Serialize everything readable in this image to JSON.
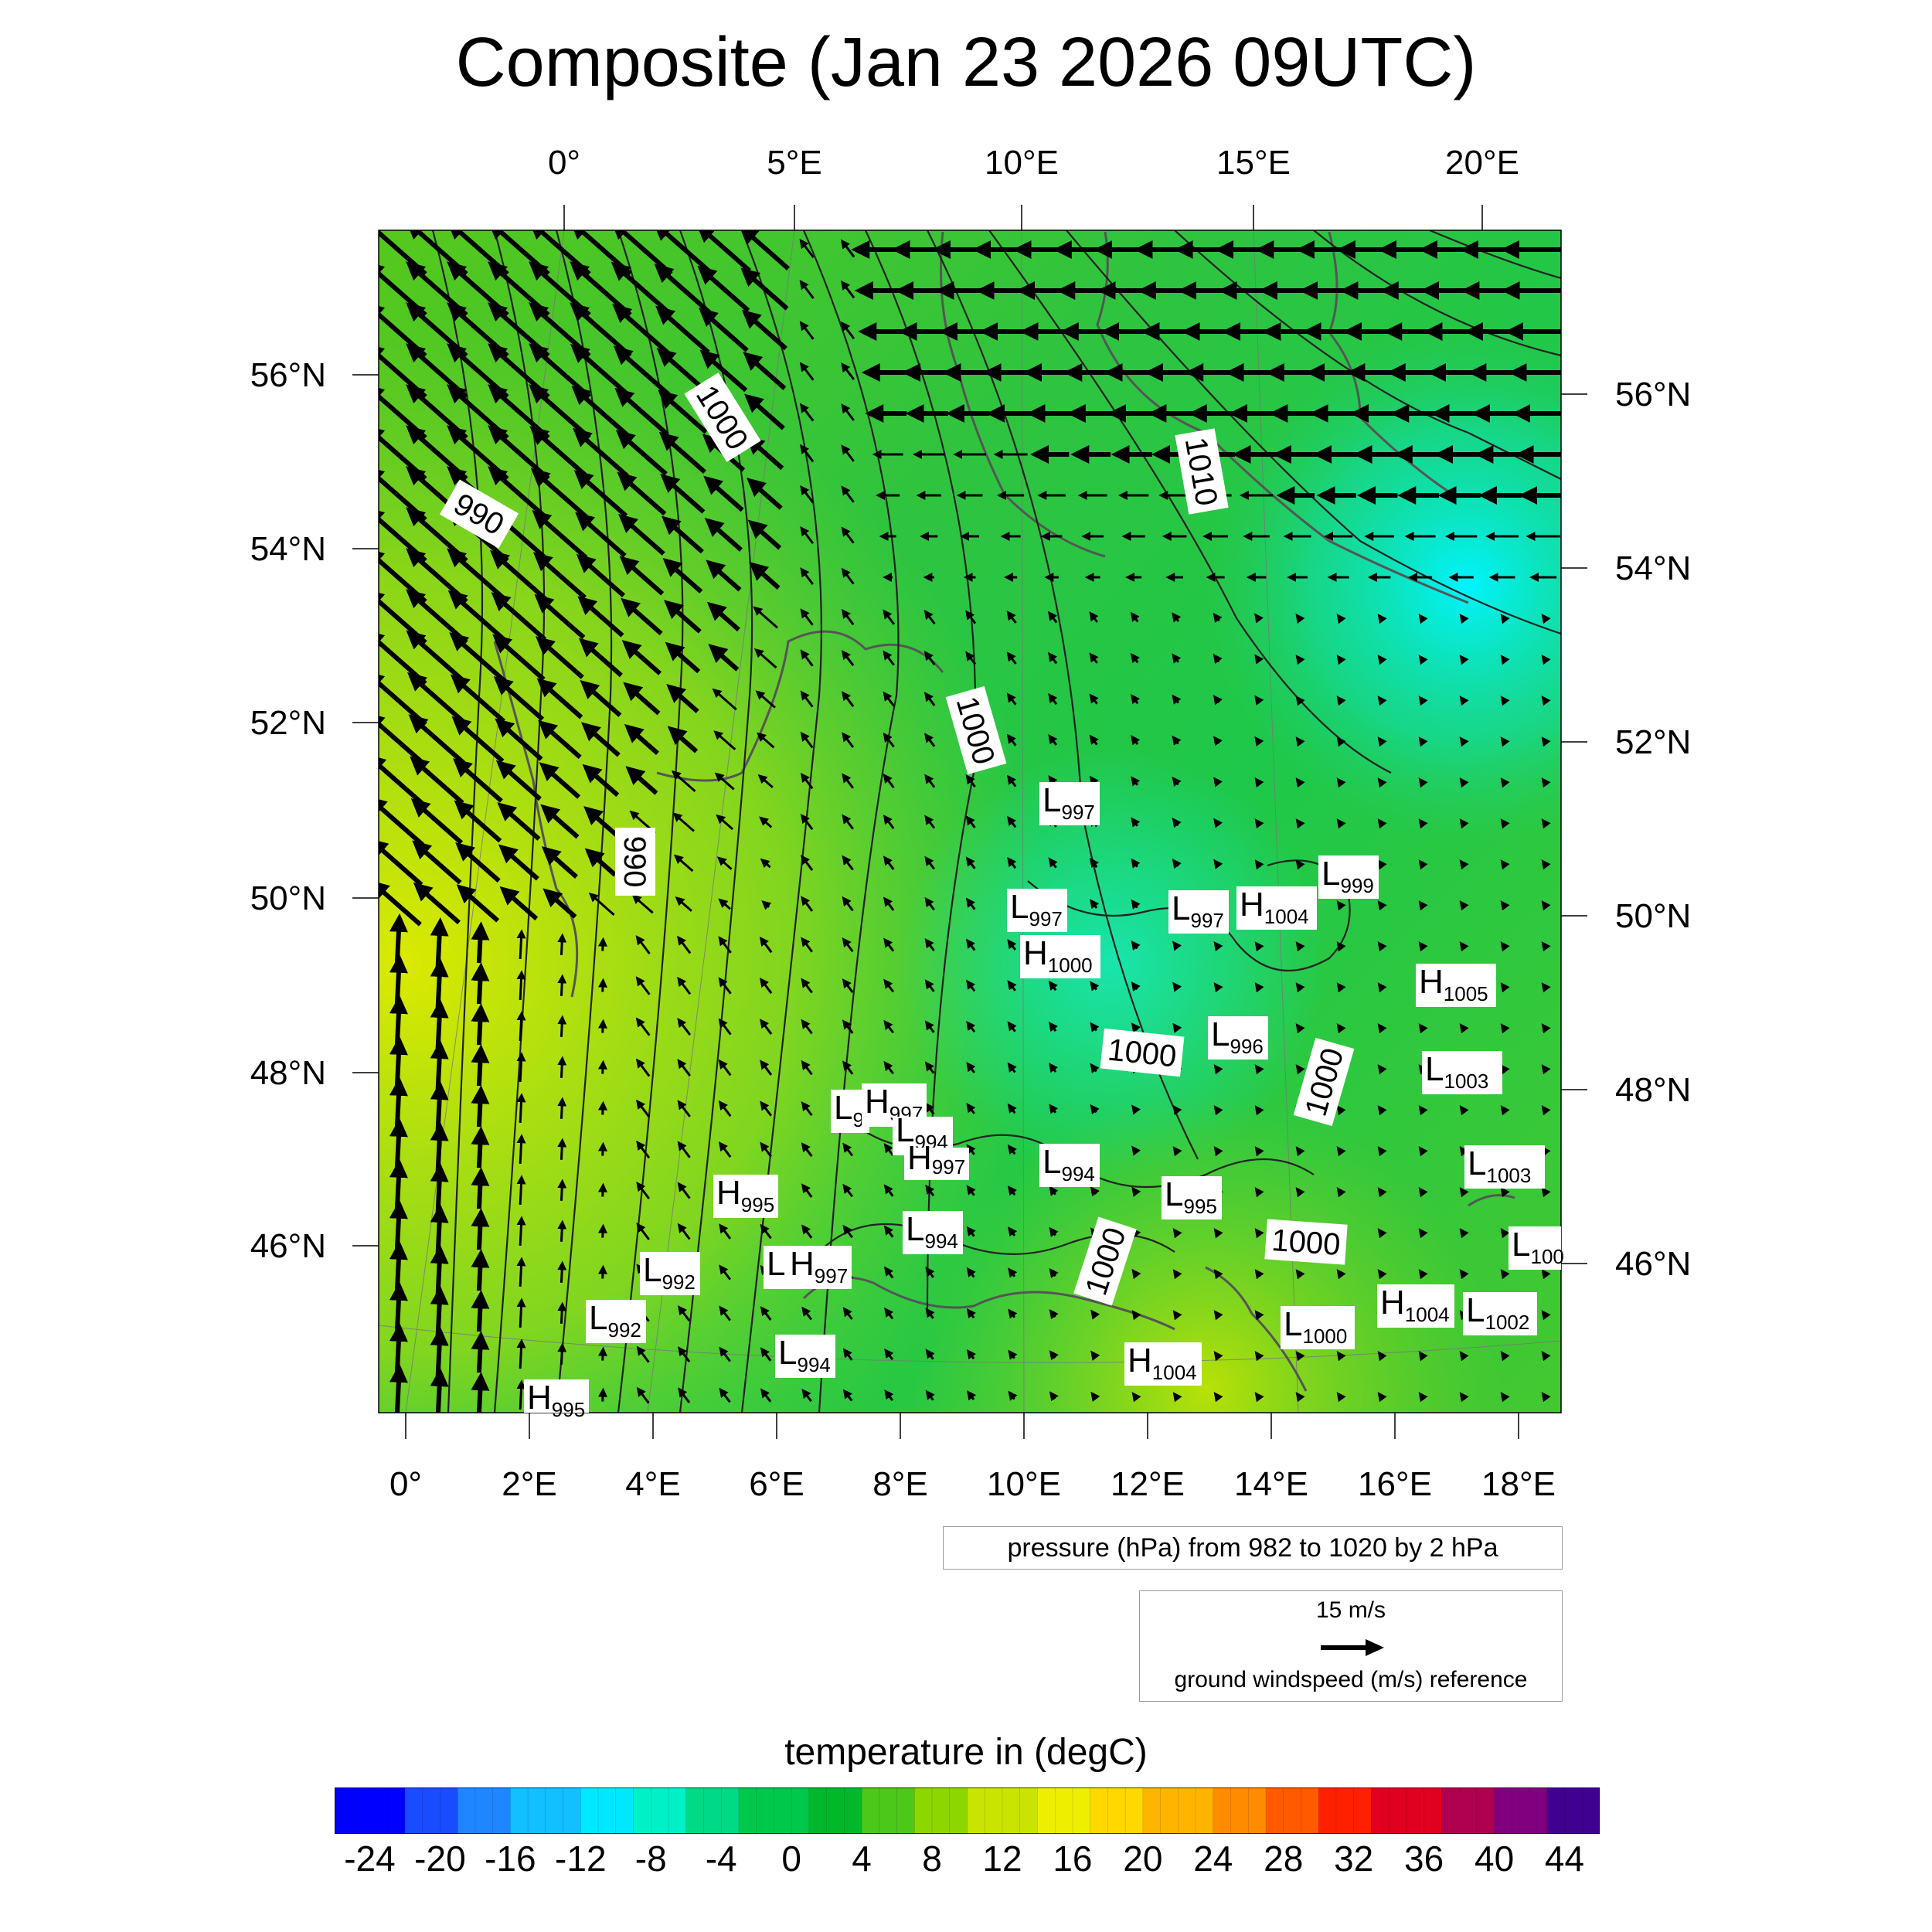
{
  "title": "Composite (Jan 23 2026 09UTC)",
  "axes": {
    "top_lon": [
      "0°",
      "5°E",
      "10°E",
      "15°E",
      "20°E"
    ],
    "bottom_lon": [
      "0°",
      "2°E",
      "4°E",
      "6°E",
      "8°E",
      "10°E",
      "12°E",
      "14°E",
      "16°E",
      "18°E"
    ],
    "left_lat": [
      "56°N",
      "54°N",
      "52°N",
      "50°N",
      "48°N",
      "46°N"
    ],
    "right_lat": [
      "56°N",
      "54°N",
      "52°N",
      "50°N",
      "48°N",
      "46°N"
    ]
  },
  "isobar_labels": [
    "1000",
    "990",
    "1010",
    "1000",
    "990",
    "1000",
    "1000",
    "1000",
    "1000"
  ],
  "pressure_centers": [
    {
      "type": "L",
      "value": "997"
    },
    {
      "type": "L",
      "value": "999"
    },
    {
      "type": "L",
      "value": "997"
    },
    {
      "type": "L",
      "value": "997"
    },
    {
      "type": "H",
      "value": "1004"
    },
    {
      "type": "H",
      "value": "1000"
    },
    {
      "type": "H",
      "value": "1005"
    },
    {
      "type": "L",
      "value": "996"
    },
    {
      "type": "L",
      "value": "1003"
    },
    {
      "type": "L",
      "value": "9"
    },
    {
      "type": "H",
      "value": "997"
    },
    {
      "type": "L",
      "value": "994"
    },
    {
      "type": "H",
      "value": "997"
    },
    {
      "type": "L",
      "value": "994"
    },
    {
      "type": "L",
      "value": "1003"
    },
    {
      "type": "H",
      "value": "995"
    },
    {
      "type": "L",
      "value": "995"
    },
    {
      "type": "L",
      "value": "994"
    },
    {
      "type": "L",
      "value": "992"
    },
    {
      "type": "L",
      "value": ""
    },
    {
      "type": "H",
      "value": "997"
    },
    {
      "type": "L",
      "value": "992"
    },
    {
      "type": "L",
      "value": "994"
    },
    {
      "type": "H",
      "value": "1004"
    },
    {
      "type": "L",
      "value": "1000"
    },
    {
      "type": "H",
      "value": "1004"
    },
    {
      "type": "L",
      "value": "1002"
    },
    {
      "type": "H",
      "value": "995"
    },
    {
      "type": "L",
      "value": "100"
    }
  ],
  "pressure_legend": "pressure (hPa) from 982 to 1020 by 2 hPa",
  "wind_reference": {
    "speed_label": "15 m/s",
    "label": "ground windspeed (m/s) reference"
  },
  "colorbar": {
    "title": "temperature in (degC)",
    "ticks": [
      "-24",
      "-20",
      "-16",
      "-12",
      "-8",
      "-4",
      "0",
      "4",
      "8",
      "12",
      "16",
      "20",
      "24",
      "28",
      "32",
      "36",
      "40",
      "44"
    ],
    "min": -26,
    "max": 46,
    "colors": [
      "#0000ff",
      "#1a4cff",
      "#1f86ff",
      "#12bfff",
      "#00e8ff",
      "#00f0c8",
      "#00d985",
      "#00c84a",
      "#00b82a",
      "#4cc81a",
      "#8ed600",
      "#c8e400",
      "#eeee00",
      "#ffd800",
      "#ffb400",
      "#ff8c00",
      "#ff5a00",
      "#ff2000",
      "#e00020",
      "#b00050",
      "#800080",
      "#400090"
    ]
  },
  "colors": {
    "accent_cold": "#00e8ff",
    "accent_warm": "#d8e800",
    "land_mid": "#1ec83c"
  }
}
